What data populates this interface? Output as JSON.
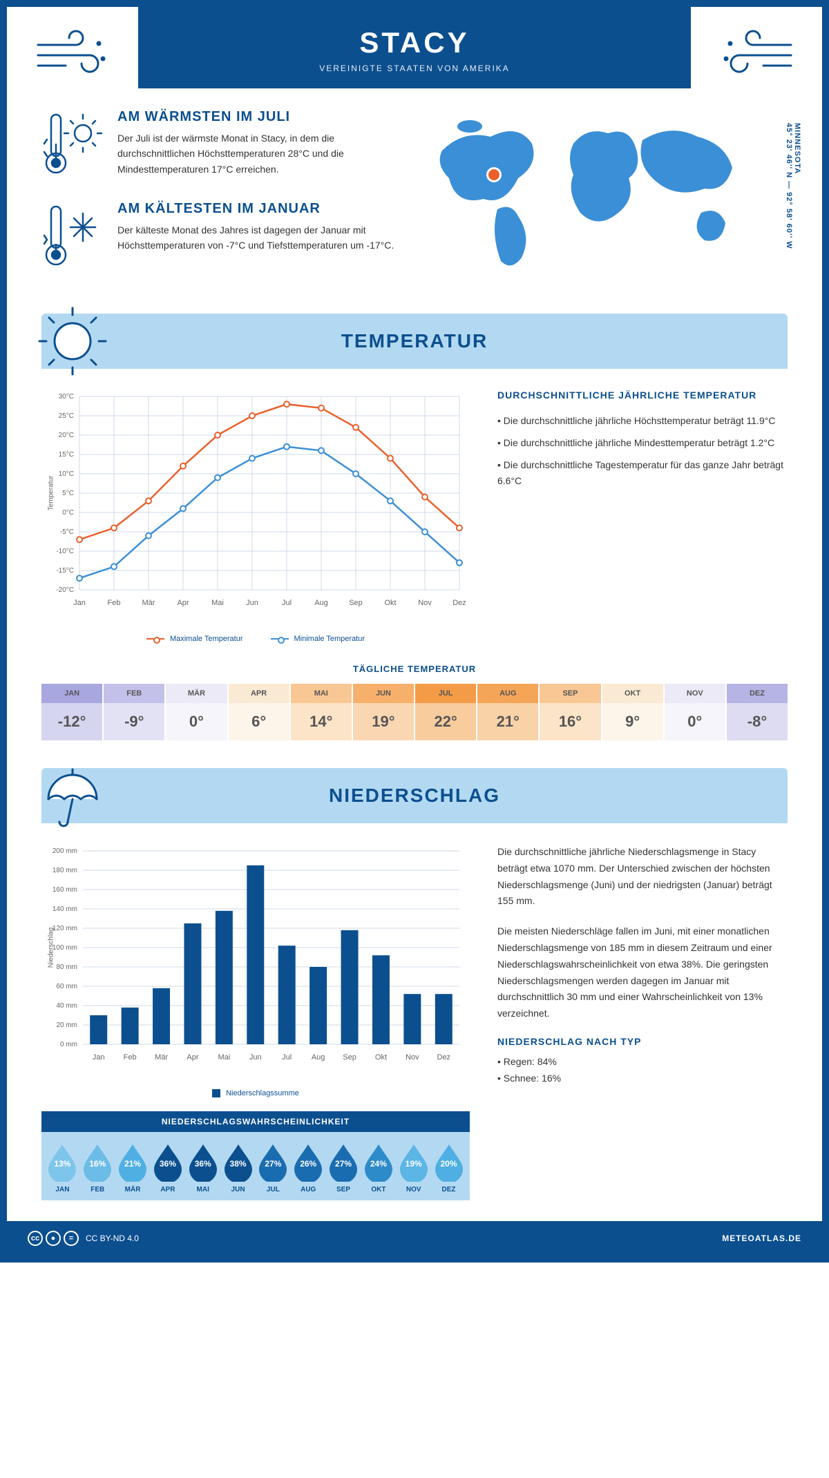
{
  "header": {
    "title": "STACY",
    "subtitle": "VEREINIGTE STAATEN VON AMERIKA"
  },
  "coords": {
    "line1": "MINNESOTA",
    "line2": "45° 23' 46'' N — 92° 58' 60'' W"
  },
  "facts": {
    "warm": {
      "title": "AM WÄRMSTEN IM JULI",
      "body": "Der Juli ist der wärmste Monat in Stacy, in dem die durchschnittlichen Höchsttemperaturen 28°C und die Mindesttemperaturen 17°C erreichen."
    },
    "cold": {
      "title": "AM KÄLTESTEN IM JANUAR",
      "body": "Der kälteste Monat des Jahres ist dagegen der Januar mit Höchsttemperaturen von -7°C und Tiefsttemperaturen um -17°C."
    }
  },
  "sections": {
    "temp_title": "TEMPERATUR",
    "precip_title": "NIEDERSCHLAG"
  },
  "temp_chart": {
    "type": "line",
    "ylabel": "Temperatur",
    "ylim": [
      -20,
      30
    ],
    "ytick_step": 5,
    "months": [
      "Jan",
      "Feb",
      "Mär",
      "Apr",
      "Mai",
      "Jun",
      "Jul",
      "Aug",
      "Sep",
      "Okt",
      "Nov",
      "Dez"
    ],
    "max_values": [
      -7,
      -4,
      3,
      12,
      20,
      25,
      28,
      27,
      22,
      14,
      4,
      -4
    ],
    "min_values": [
      -17,
      -14,
      -6,
      1,
      9,
      14,
      17,
      16,
      10,
      3,
      -5,
      -13
    ],
    "max_color": "#e8612c",
    "min_color": "#3b8fd6",
    "grid_color": "#cfd9e8",
    "legend_max": "Maximale Temperatur",
    "legend_min": "Minimale Temperatur"
  },
  "temp_text": {
    "h": "DURCHSCHNITTLICHE JÄHRLICHE TEMPERATUR",
    "p1": "Die durchschnittliche jährliche Höchsttemperatur beträgt 11.9°C",
    "p2": "Die durchschnittliche jährliche Mindesttemperatur beträgt 1.2°C",
    "p3": "Die durchschnittliche Tagestemperatur für das ganze Jahr beträgt 6.6°C"
  },
  "daily_temp": {
    "title": "TÄGLICHE TEMPERATUR",
    "months": [
      "JAN",
      "FEB",
      "MÄR",
      "APR",
      "MAI",
      "JUN",
      "JUL",
      "AUG",
      "SEP",
      "OKT",
      "NOV",
      "DEZ"
    ],
    "values": [
      "-12°",
      "-9°",
      "0°",
      "6°",
      "14°",
      "19°",
      "22°",
      "21°",
      "16°",
      "9°",
      "0°",
      "-8°"
    ],
    "head_colors": [
      "#a9a7e0",
      "#c3c1ea",
      "#eceaf6",
      "#fbead3",
      "#f9c793",
      "#f7b06b",
      "#f49b48",
      "#f5a558",
      "#f9c793",
      "#fbead3",
      "#eceaf6",
      "#b6b4e5"
    ],
    "body_colors": [
      "#d6d5f0",
      "#e3e2f5",
      "#f6f5fb",
      "#fdf5e9",
      "#fce4c8",
      "#fad7b2",
      "#f9cc9e",
      "#f9d2a8",
      "#fce4c8",
      "#fdf5e9",
      "#f6f5fb",
      "#dddcf2"
    ],
    "text_color": "#555"
  },
  "precip_chart": {
    "type": "bar",
    "ylabel": "Niederschlag",
    "ylim": [
      0,
      200
    ],
    "ytick_step": 20,
    "months": [
      "Jan",
      "Feb",
      "Mär",
      "Apr",
      "Mai",
      "Jun",
      "Jul",
      "Aug",
      "Sep",
      "Okt",
      "Nov",
      "Dez"
    ],
    "values": [
      30,
      38,
      58,
      125,
      138,
      185,
      102,
      80,
      118,
      92,
      52,
      52
    ],
    "bar_color": "#0b4f8f",
    "grid_color": "#cfd9e8",
    "legend": "Niederschlagssumme"
  },
  "precip_text": {
    "p1": "Die durchschnittliche jährliche Niederschlagsmenge in Stacy beträgt etwa 1070 mm. Der Unterschied zwischen der höchsten Niederschlagsmenge (Juni) und der niedrigsten (Januar) beträgt 155 mm.",
    "p2": "Die meisten Niederschläge fallen im Juni, mit einer monatlichen Niederschlagsmenge von 185 mm in diesem Zeitraum und einer Niederschlagswahrscheinlichkeit von etwa 38%. Die geringsten Niederschlagsmengen werden dagegen im Januar mit durchschnittlich 30 mm und einer Wahrscheinlichkeit von 13% verzeichnet.",
    "by_type_h": "NIEDERSCHLAG NACH TYP",
    "by_type_1": "• Regen: 84%",
    "by_type_2": "• Schnee: 16%"
  },
  "prob": {
    "title": "NIEDERSCHLAGSWAHRSCHEINLICHKEIT",
    "months": [
      "JAN",
      "FEB",
      "MÄR",
      "APR",
      "MAI",
      "JUN",
      "JUL",
      "AUG",
      "SEP",
      "OKT",
      "NOV",
      "DEZ"
    ],
    "values": [
      "13%",
      "16%",
      "21%",
      "36%",
      "36%",
      "38%",
      "27%",
      "26%",
      "27%",
      "24%",
      "19%",
      "20%"
    ],
    "colors": [
      "#7ec5ec",
      "#6cbce8",
      "#4fafe2",
      "#0b4f8f",
      "#0b4f8f",
      "#0b4f8f",
      "#1a6cb0",
      "#1a6cb0",
      "#1a6cb0",
      "#2e8bc9",
      "#5bb5e5",
      "#4fafe2"
    ]
  },
  "footer": {
    "license": "CC BY-ND 4.0",
    "site": "METEOATLAS.DE"
  },
  "colors": {
    "brand": "#0b4f8f",
    "brand_light": "#b3d9f2"
  }
}
